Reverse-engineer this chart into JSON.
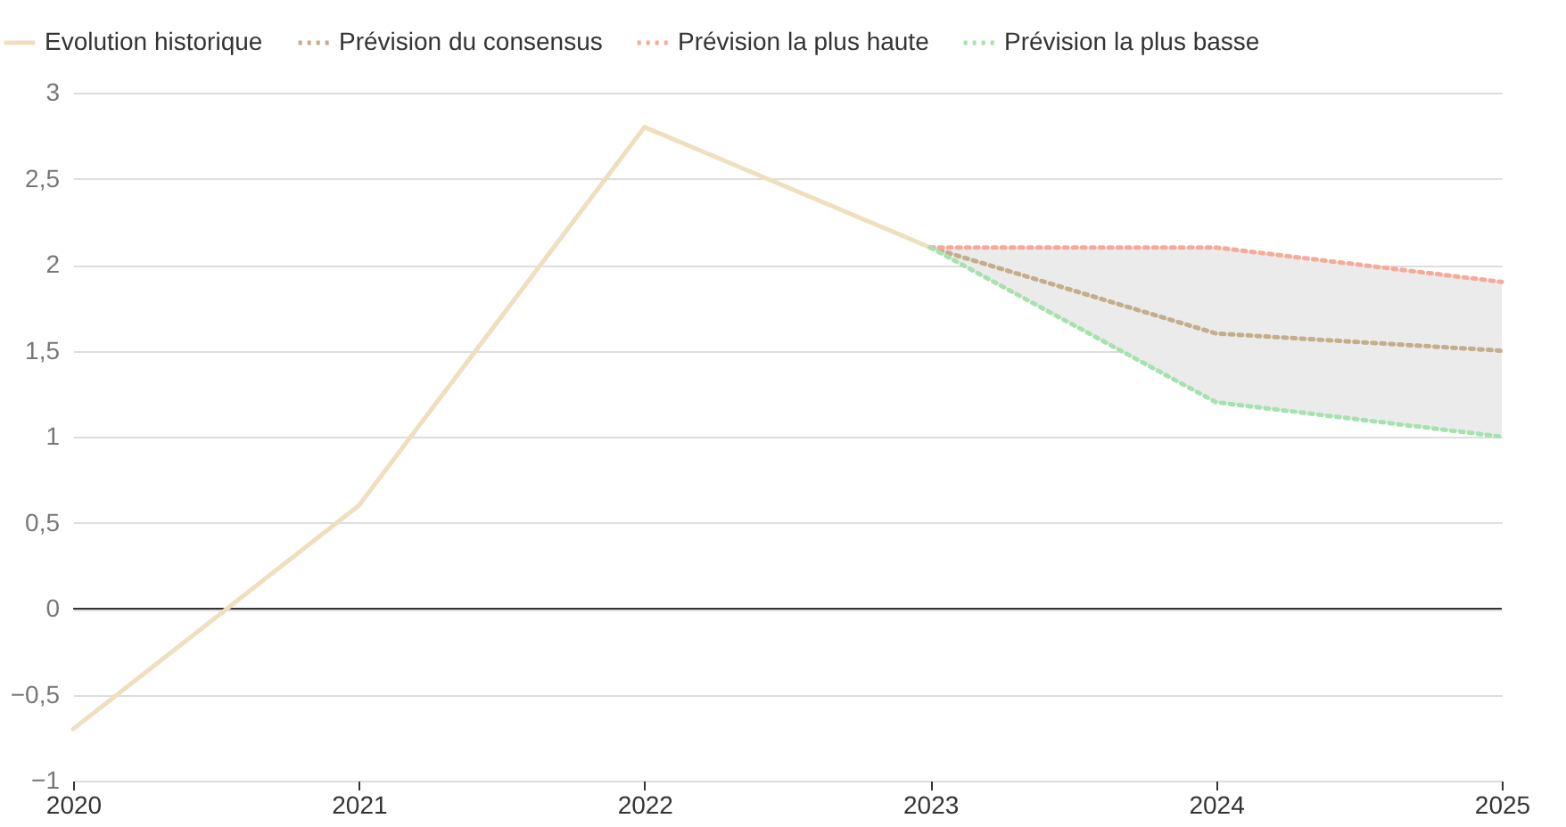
{
  "chart_data": {
    "type": "line",
    "x": [
      2020,
      2021,
      2022,
      2023,
      2024,
      2025
    ],
    "series": [
      {
        "name": "Evolution historique",
        "color": "#efdfbf",
        "line_style": "solid",
        "values": [
          -0.7,
          0.6,
          2.8,
          2.1,
          null,
          null
        ]
      },
      {
        "name": "Prévision du consensus",
        "color": "#c4ad8a",
        "line_style": "dotted",
        "values": [
          null,
          null,
          null,
          2.1,
          1.6,
          1.5
        ],
        "lower": [
          null,
          null,
          null,
          2.1,
          1.2,
          1.0
        ],
        "upper": [
          null,
          null,
          null,
          2.1,
          2.1,
          1.9
        ]
      },
      {
        "name": "Prévision la plus haute",
        "color": "#f5ab9a",
        "line_style": "dotted",
        "values": [
          null,
          null,
          null,
          2.1,
          2.1,
          1.9
        ]
      },
      {
        "name": "Prévision la plus basse",
        "color": "#a6e2ae",
        "line_style": "dotted",
        "values": [
          null,
          null,
          null,
          2.1,
          1.2,
          1.0
        ]
      }
    ],
    "xlim": [
      2020,
      2025
    ],
    "xticks": [
      2020,
      2021,
      2022,
      2023,
      2024,
      2025
    ],
    "ylim": [
      -1,
      3
    ],
    "yticks": [
      {
        "value": -1,
        "label": "−1"
      },
      {
        "value": -0.5,
        "label": "−0,5"
      },
      0,
      {
        "value": 0.5,
        "label": "0,5"
      },
      1,
      {
        "value": 1.5,
        "label": "1,5"
      },
      2,
      {
        "value": 2.5,
        "label": "2,5"
      },
      3
    ],
    "ref_lines": [
      {
        "axis": "y",
        "value": 0,
        "color": "#333333"
      }
    ],
    "grid": "y",
    "legend": "top left",
    "marker": "none"
  }
}
